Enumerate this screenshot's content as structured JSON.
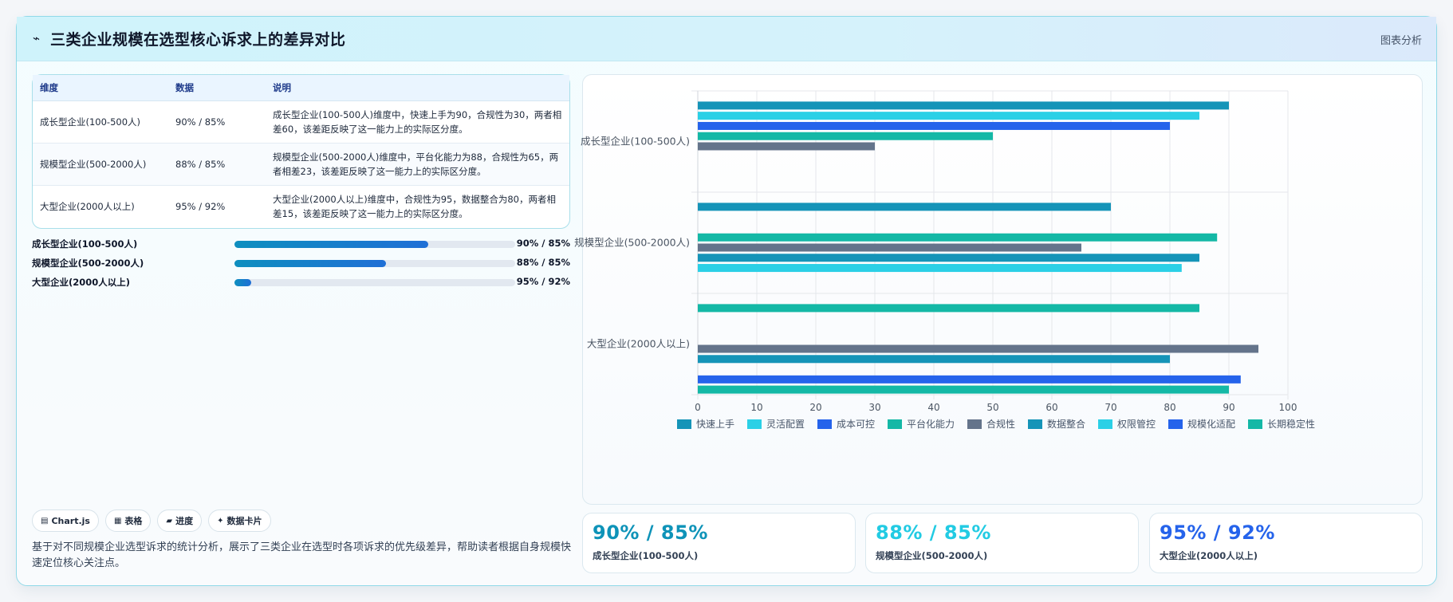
{
  "header": {
    "icon": "chart-line-icon",
    "title": "三类企业规模在选型核心诉求上的差异对比",
    "link": "图表分析"
  },
  "table": {
    "headers": [
      "维度",
      "数据",
      "说明"
    ],
    "rows": [
      {
        "dim": "成长型企业(100-500人)",
        "data": "90% / 85%",
        "note": "成长型企业(100-500人)维度中，快速上手为90，合规性为30，两者相差60，该差距反映了这一能力上的实际区分度。"
      },
      {
        "dim": "规模型企业(500-2000人)",
        "data": "88% / 85%",
        "note": "规模型企业(500-2000人)维度中，平台化能力为88，合规性为65，两者相差23，该差距反映了这一能力上的实际区分度。"
      },
      {
        "dim": "大型企业(2000人以上)",
        "data": "95% / 92%",
        "note": "大型企业(2000人以上)维度中，合规性为95，数据整合为80，两者相差15，该差距反映了这一能力上的实际区分度。"
      }
    ]
  },
  "progress": [
    {
      "label": "成长型企业(100-500人)",
      "value": "90% / 85%",
      "fill": 0.69
    },
    {
      "label": "规模型企业(500-2000人)",
      "value": "88% / 85%",
      "fill": 0.54
    },
    {
      "label": "大型企业(2000人以上)",
      "value": "95% / 92%",
      "fill": 0.06
    }
  ],
  "chips": [
    {
      "icon": "▤",
      "label": "Chart.js"
    },
    {
      "icon": "▦",
      "label": "表格"
    },
    {
      "icon": "▰",
      "label": "进度"
    },
    {
      "icon": "✦",
      "label": "数据卡片"
    }
  ],
  "description": "基于对不同规模企业选型诉求的统计分析，展示了三类企业在选型时各项诉求的优先级差异，帮助读者根据自身规模快速定位核心关注点。",
  "stats": [
    {
      "value": "90% / 85%",
      "label": "成长型企业(100-500人)",
      "color": "#0e93b8"
    },
    {
      "value": "88% / 85%",
      "label": "规模型企业(500-2000人)",
      "color": "#22cbe3"
    },
    {
      "value": "95% / 92%",
      "label": "大型企业(2000人以上)",
      "color": "#2563eb"
    }
  ],
  "chart_data": {
    "type": "bar",
    "orientation": "horizontal",
    "categories": [
      "成长型企业(100-500人)",
      "规模型企业(500-2000人)",
      "大型企业(2000人以上)"
    ],
    "xlim": [
      0,
      100
    ],
    "xticks": [
      0,
      10,
      20,
      30,
      40,
      50,
      60,
      70,
      80,
      90,
      100
    ],
    "grid": true,
    "legend_position": "bottom",
    "series": [
      {
        "name": "快速上手",
        "color": "#1594b8",
        "values": [
          90,
          null,
          null
        ]
      },
      {
        "name": "灵活配置",
        "color": "#2bd0e6",
        "values": [
          85,
          null,
          null
        ]
      },
      {
        "name": "成本可控",
        "color": "#2563eb",
        "values": [
          80,
          null,
          null
        ]
      },
      {
        "name": "平台化能力",
        "color": "#14b8a6",
        "values": [
          50,
          88,
          null
        ]
      },
      {
        "name": "合规性",
        "color": "#64748b",
        "values": [
          30,
          65,
          95
        ]
      },
      {
        "name": "数据整合",
        "color": "#1594b8",
        "values": [
          null,
          85,
          80
        ]
      },
      {
        "name": "权限管控",
        "color": "#2bd0e6",
        "values": [
          null,
          82,
          null
        ]
      },
      {
        "name": "规模化适配",
        "color": "#2563eb",
        "values": [
          null,
          null,
          92
        ]
      },
      {
        "name": "长期稳定性",
        "color": "#14b8a6",
        "values": [
          null,
          null,
          90
        ]
      }
    ],
    "extra_bars": [
      {
        "category": 1,
        "slot": 0,
        "value": 70,
        "color": "#1594b8"
      },
      {
        "category": 2,
        "slot": 0,
        "value": 85,
        "color": "#14b8a6"
      }
    ]
  }
}
